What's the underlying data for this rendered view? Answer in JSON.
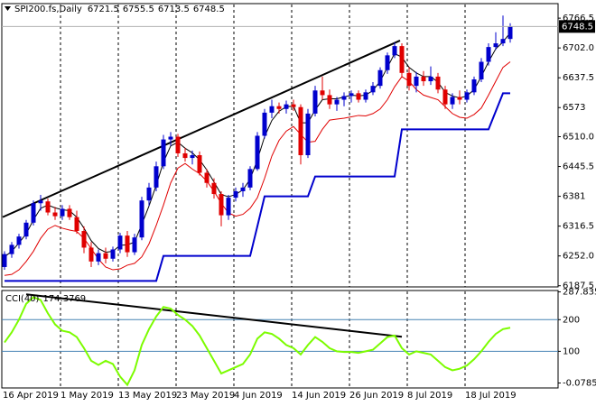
{
  "chart_data": [
    {
      "type": "candlestick",
      "symbol": "SPI200.fs,Daily",
      "categories": [
        "16 Apr 2019",
        null,
        null,
        null,
        null,
        null,
        null,
        null,
        "1 May 2019",
        null,
        null,
        null,
        null,
        null,
        null,
        null,
        "13 May 2019",
        null,
        null,
        null,
        null,
        null,
        null,
        null,
        "23 May 2019",
        null,
        null,
        null,
        null,
        null,
        null,
        null,
        "4 Jun 2019",
        null,
        null,
        null,
        null,
        null,
        null,
        null,
        "14 Jun 2019",
        null,
        null,
        null,
        null,
        null,
        null,
        null,
        "26 Jun 2019",
        null,
        null,
        null,
        null,
        null,
        null,
        null,
        "8 Jul 2019",
        null,
        null,
        null,
        null,
        null,
        null,
        null,
        "18 Jul 2019",
        null,
        null,
        null,
        null,
        null,
        null
      ],
      "open": [
        6228,
        6256,
        6276,
        6294,
        6324,
        6366,
        6370,
        6346,
        6338,
        6354,
        6336,
        6306,
        6270,
        6240,
        6258,
        6246,
        6266,
        6296,
        6260,
        6292,
        6372,
        6400,
        6446,
        6504,
        6510,
        6474,
        6464,
        6470,
        6432,
        6410,
        6386,
        6340,
        6378,
        6392,
        6400,
        6440,
        6512,
        6562,
        6576,
        6570,
        6580,
        6574,
        6470,
        6560,
        6610,
        6600,
        6580,
        6590,
        6598,
        6604,
        6590,
        6606,
        6620,
        6654,
        6686,
        6706,
        6648,
        6620,
        6640,
        6630,
        6640,
        6612,
        6580,
        6596,
        6590,
        6606,
        6634,
        6672,
        6704,
        6712,
        6721.5
      ],
      "high": [
        6262,
        6282,
        6300,
        6330,
        6372,
        6384,
        6376,
        6358,
        6362,
        6362,
        6350,
        6316,
        6282,
        6266,
        6270,
        6272,
        6302,
        6306,
        6300,
        6380,
        6410,
        6456,
        6514,
        6520,
        6516,
        6486,
        6480,
        6478,
        6440,
        6420,
        6392,
        6384,
        6400,
        6410,
        6446,
        6520,
        6570,
        6590,
        6584,
        6588,
        6590,
        6580,
        6570,
        6620,
        6640,
        6612,
        6596,
        6606,
        6610,
        6610,
        6612,
        6628,
        6660,
        6692,
        6714,
        6712,
        6660,
        6650,
        6652,
        6662,
        6648,
        6620,
        6604,
        6610,
        6612,
        6640,
        6680,
        6712,
        6736,
        6772,
        6755.5
      ],
      "low": [
        6222,
        6248,
        6268,
        6288,
        6318,
        6350,
        6340,
        6330,
        6330,
        6330,
        6300,
        6258,
        6228,
        6232,
        6236,
        6240,
        6258,
        6250,
        6254,
        6286,
        6360,
        6392,
        6440,
        6490,
        6466,
        6456,
        6450,
        6426,
        6400,
        6376,
        6316,
        6330,
        6370,
        6380,
        6394,
        6436,
        6506,
        6550,
        6560,
        6560,
        6566,
        6450,
        6464,
        6554,
        6590,
        6570,
        6566,
        6576,
        6584,
        6584,
        6584,
        6600,
        6614,
        6646,
        6680,
        6640,
        6610,
        6606,
        6620,
        6622,
        6604,
        6570,
        6570,
        6580,
        6584,
        6600,
        6628,
        6664,
        6698,
        6706,
        6713.5
      ],
      "close": [
        6256,
        6276,
        6294,
        6324,
        6366,
        6372,
        6346,
        6338,
        6354,
        6336,
        6306,
        6270,
        6240,
        6258,
        6246,
        6266,
        6296,
        6260,
        6292,
        6372,
        6400,
        6446,
        6504,
        6510,
        6474,
        6464,
        6470,
        6432,
        6410,
        6386,
        6340,
        6378,
        6392,
        6400,
        6440,
        6512,
        6562,
        6576,
        6570,
        6580,
        6574,
        6470,
        6560,
        6610,
        6600,
        6580,
        6590,
        6598,
        6604,
        6590,
        6606,
        6620,
        6654,
        6686,
        6706,
        6648,
        6620,
        6640,
        6630,
        6640,
        6612,
        6580,
        6596,
        6590,
        6606,
        6634,
        6672,
        6704,
        6712,
        6721.5,
        6748.5
      ],
      "up_color": "#0000cd",
      "down_color": "#e00000",
      "lines": [
        {
          "color": "#000000",
          "values": [
            6250,
            6262,
            6280,
            6300,
            6330,
            6355,
            6362,
            6356,
            6352,
            6350,
            6336,
            6312,
            6285,
            6268,
            6260,
            6262,
            6275,
            6276,
            6282,
            6320,
            6360,
            6405,
            6455,
            6490,
            6498,
            6485,
            6475,
            6460,
            6438,
            6412,
            6385,
            6380,
            6385,
            6395,
            6418,
            6460,
            6510,
            6545,
            6565,
            6575,
            6576,
            6540,
            6540,
            6568,
            6590,
            6592,
            6592,
            6596,
            6600,
            6598,
            6600,
            6610,
            6630,
            6660,
            6690,
            6682,
            6660,
            6648,
            6640,
            6640,
            6628,
            6606,
            6598,
            6594,
            6598,
            6612,
            6640,
            6672,
            6700,
            6715,
            6735
          ]
        },
        {
          "color": "#e00000",
          "values": [
            6210,
            6212,
            6222,
            6240,
            6262,
            6290,
            6310,
            6318,
            6312,
            6308,
            6305,
            6290,
            6268,
            6245,
            6228,
            6222,
            6224,
            6232,
            6236,
            6250,
            6278,
            6318,
            6362,
            6410,
            6442,
            6452,
            6440,
            6430,
            6414,
            6392,
            6366,
            6345,
            6338,
            6342,
            6355,
            6378,
            6420,
            6468,
            6502,
            6522,
            6532,
            6515,
            6498,
            6500,
            6526,
            6546,
            6548,
            6550,
            6553,
            6556,
            6555,
            6560,
            6570,
            6590,
            6618,
            6640,
            6630,
            6612,
            6600,
            6595,
            6590,
            6575,
            6560,
            6552,
            6550,
            6558,
            6572,
            6600,
            6630,
            6660,
            6672
          ]
        },
        {
          "color": "#0000cd",
          "values": [
            6198,
            6198,
            6198,
            6198,
            6198,
            6198,
            6198,
            6198,
            6198,
            6198,
            6198,
            6198,
            6198,
            6198,
            6198,
            6198,
            6198,
            6198,
            6198,
            6198,
            6198,
            6198,
            6252,
            6252,
            6252,
            6252,
            6252,
            6252,
            6252,
            6252,
            6252,
            6252,
            6252,
            6252,
            6252,
            6316,
            6381,
            6381,
            6381,
            6381,
            6381,
            6381,
            6381,
            6424,
            6424,
            6424,
            6424,
            6424,
            6424,
            6424,
            6424,
            6424,
            6424,
            6424,
            6424,
            6526,
            6526,
            6526,
            6526,
            6526,
            6526,
            6526,
            6526,
            6526,
            6526,
            6526,
            6526,
            6526,
            6565,
            6604,
            6604
          ]
        }
      ],
      "trendline": {
        "x": [
          0,
          55
        ],
        "values": [
          6336,
          6718
        ]
      },
      "ylim": [
        6185,
        6796
      ],
      "yticks": [
        6766.5,
        {
          "value": 6702,
          "label": "6702.0"
        },
        6637.5,
        6573,
        {
          "value": 6510,
          "label": "6510.0"
        },
        6445.5,
        6381,
        6316.5,
        {
          "value": 6252,
          "label": "6252.0"
        },
        6187.5
      ]
    },
    {
      "type": "line",
      "name": "CCI(40)",
      "color": "#7cfc00",
      "values": [
        128,
        160,
        200,
        250,
        271,
        262,
        220,
        185,
        165,
        160,
        145,
        110,
        70,
        57,
        70,
        60,
        20,
        -6,
        40,
        120,
        170,
        210,
        240,
        235,
        215,
        200,
        180,
        150,
        110,
        70,
        30,
        40,
        50,
        60,
        90,
        140,
        160,
        155,
        140,
        120,
        110,
        90,
        120,
        145,
        130,
        110,
        100,
        98,
        98,
        95,
        100,
        105,
        125,
        145,
        150,
        110,
        90,
        100,
        95,
        90,
        70,
        50,
        40,
        45,
        55,
        75,
        100,
        130,
        155,
        170,
        174.3769
      ],
      "trendline": {
        "x": [
          3,
          55
        ],
        "values": [
          280,
          146
        ]
      },
      "ylim": [
        -10,
        292
      ],
      "yticks": [
        287.8357,
        200,
        100,
        -0.0785
      ],
      "levels": [
        200,
        100
      ]
    }
  ]
}
